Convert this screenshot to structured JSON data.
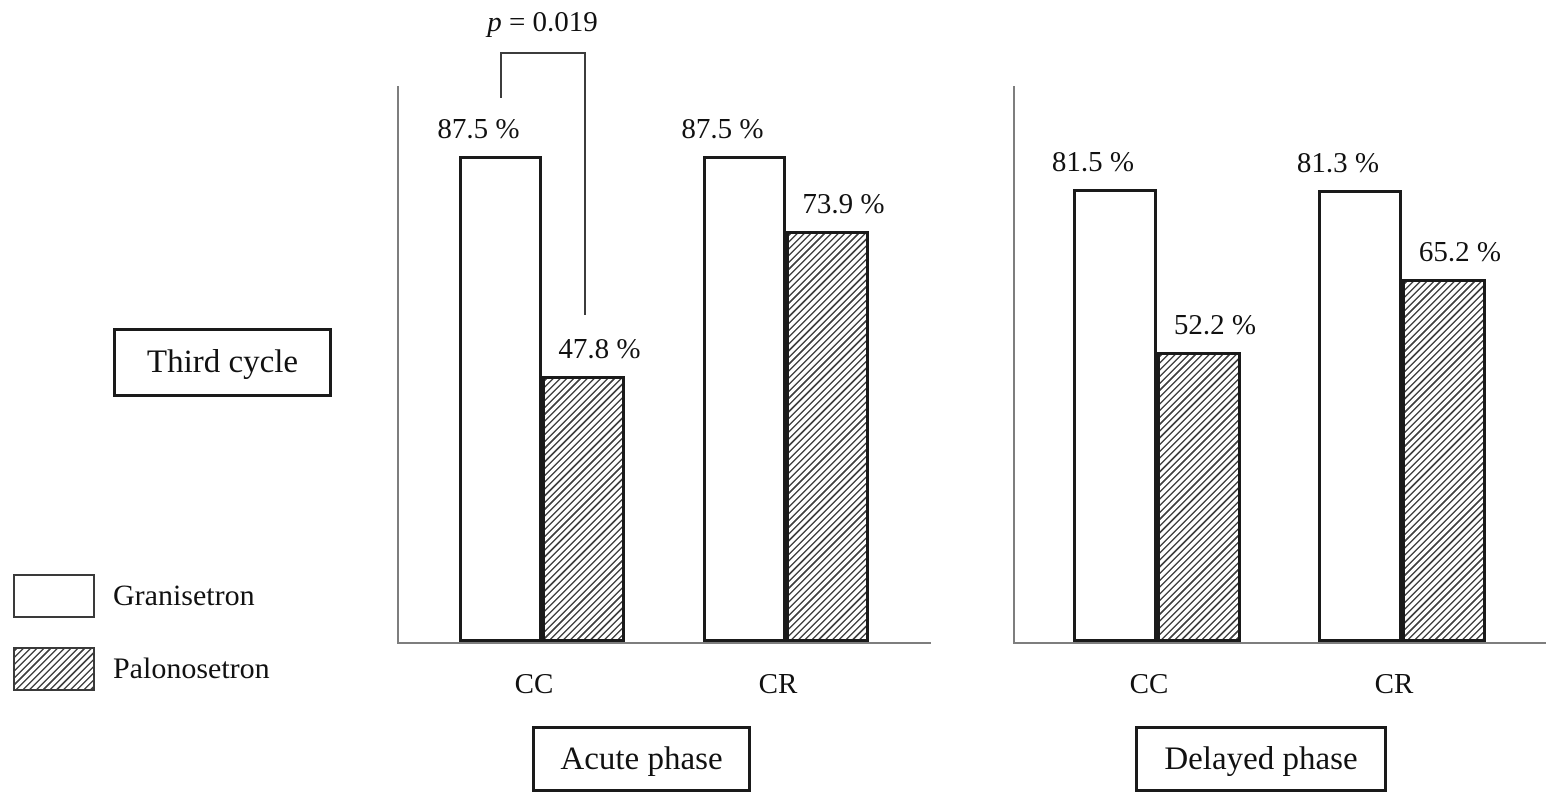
{
  "figure": {
    "cycle_label": "Third cycle",
    "annotation": {
      "p_italic": "p",
      "p_rest": " = 0.019"
    },
    "legend": [
      {
        "label": "Granisetron",
        "swatch": "plain-white"
      },
      {
        "label": "Palonosetron",
        "swatch": "diagonal-hatch"
      }
    ]
  },
  "chart_data": {
    "type": "bar",
    "unit": "%",
    "ylim": [
      0,
      100
    ],
    "grid": false,
    "legend_position": "left",
    "series_names": [
      "Granisetron",
      "Palonosetron"
    ],
    "panels": [
      {
        "label": "Acute phase",
        "categories": [
          "CC",
          "CR"
        ],
        "series": [
          {
            "name": "Granisetron",
            "values": [
              87.5,
              87.5
            ],
            "labels": [
              "87.5 %",
              "87.5 %"
            ]
          },
          {
            "name": "Palonosetron",
            "values": [
              47.8,
              73.9
            ],
            "labels": [
              "47.8 %",
              "73.9 %"
            ]
          }
        ],
        "significance": {
          "label": "p = 0.019",
          "comparison": "Granisetron vs Palonosetron at CC"
        }
      },
      {
        "label": "Delayed phase",
        "categories": [
          "CC",
          "CR"
        ],
        "series": [
          {
            "name": "Granisetron",
            "values": [
              81.5,
              81.3
            ],
            "labels": [
              "81.5 %",
              "81.3 %"
            ]
          },
          {
            "name": "Palonosetron",
            "values": [
              52.2,
              65.2
            ],
            "labels": [
              "52.2 %",
              "65.2 %"
            ]
          }
        ]
      }
    ],
    "colors": {
      "bar_fill": "#ffffff",
      "hatch_line": "#3f3f3f",
      "bar_border": "#1a1a1a",
      "axis": "#7e7e7e",
      "text": "#111111"
    }
  }
}
